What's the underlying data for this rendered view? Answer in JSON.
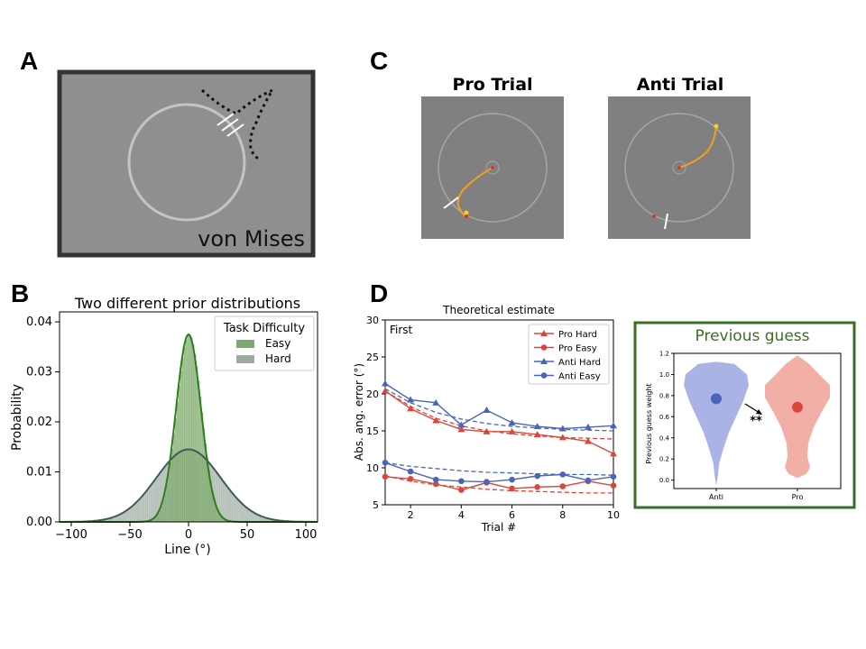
{
  "panel_labels": {
    "a": "A",
    "b": "B",
    "c": "C",
    "d": "D"
  },
  "panel_a": {
    "label": "von Mises"
  },
  "panel_c": {
    "pro_title": "Pro Trial",
    "anti_title": "Anti Trial"
  },
  "colors": {
    "easy": "#7faa6e",
    "easy_line": "#2e7d1f",
    "hard": "#9eaba2",
    "hard_line": "#3d5a5d",
    "pro": "#d9473a",
    "anti": "#4a65b8",
    "violin_anti": "#9aa6e0",
    "violin_pro": "#f0a196",
    "box_border": "#3b6e25"
  },
  "chart_data": [
    {
      "type": "bar",
      "title": "Two different prior distributions",
      "xlabel": "Line (°)",
      "ylabel": "Probability",
      "xlim": [
        -110,
        110
      ],
      "ylim": [
        0,
        0.042
      ],
      "xticks": [
        -100,
        -50,
        0,
        50,
        100
      ],
      "yticks": [
        0.0,
        0.01,
        0.02,
        0.03,
        0.04
      ],
      "xtick_labels": [
        "−100",
        "−50",
        "0",
        "50",
        "100"
      ],
      "ytick_labels": [
        "0.00",
        "0.01",
        "0.02",
        "0.03",
        "0.04"
      ],
      "legend": {
        "title": "Task Difficulty",
        "placement": "top-right"
      },
      "series": [
        {
          "name": "Easy",
          "shape": "gaussian",
          "mean": 0,
          "sd": 10.6,
          "peak": 0.0375
        },
        {
          "name": "Hard",
          "shape": "gaussian",
          "mean": 0,
          "sd": 27.5,
          "peak": 0.0145
        }
      ],
      "grid": false
    },
    {
      "type": "line",
      "title": "Theoretical estimate",
      "annotation": "First",
      "xlabel": "Trial #",
      "ylabel": "Abs. ang. error (°)",
      "xlim": [
        1,
        10
      ],
      "ylim": [
        5,
        30
      ],
      "xticks": [
        2,
        4,
        6,
        8,
        10
      ],
      "yticks": [
        5,
        10,
        15,
        20,
        25,
        30
      ],
      "legend": {
        "placement": "top-right"
      },
      "x": [
        1,
        2,
        3,
        4,
        5,
        6,
        7,
        8,
        9,
        10
      ],
      "series": [
        {
          "name": "Pro Hard",
          "marker": "triangle",
          "color_key": "pro",
          "values": [
            20.4,
            18.0,
            16.4,
            15.2,
            14.9,
            14.9,
            14.5,
            14.1,
            13.6,
            11.9
          ],
          "fit": [
            20.4,
            18.3,
            16.7,
            15.7,
            15.0,
            14.6,
            14.3,
            14.1,
            14.0,
            13.9
          ]
        },
        {
          "name": "Pro Easy",
          "marker": "circle",
          "color_key": "pro",
          "values": [
            8.8,
            8.5,
            7.8,
            7.0,
            8.0,
            7.2,
            7.4,
            7.5,
            8.2,
            7.6
          ],
          "fit": [
            8.9,
            8.2,
            7.7,
            7.4,
            7.1,
            6.9,
            6.8,
            6.7,
            6.6,
            6.6
          ]
        },
        {
          "name": "Anti Hard",
          "marker": "triangle",
          "color_key": "anti",
          "values": [
            21.4,
            19.2,
            18.8,
            15.8,
            17.8,
            16.1,
            15.6,
            15.3,
            15.5,
            15.7
          ],
          "fit": [
            20.7,
            18.8,
            17.5,
            16.6,
            16.0,
            15.6,
            15.4,
            15.2,
            15.1,
            15.0
          ]
        },
        {
          "name": "Anti Easy",
          "marker": "circle",
          "color_key": "anti",
          "values": [
            10.7,
            9.5,
            8.4,
            8.2,
            8.1,
            8.4,
            8.9,
            9.1,
            8.3,
            8.8
          ],
          "fit": [
            10.7,
            10.2,
            9.9,
            9.6,
            9.4,
            9.3,
            9.2,
            9.1,
            9.1,
            9.0
          ]
        }
      ],
      "grid": false
    },
    {
      "type": "violin",
      "title": "Previous guess",
      "xlabel": "",
      "ylabel": "Previous guess weight",
      "categories": [
        "Anti",
        "Pro"
      ],
      "means": [
        0.77,
        0.69
      ],
      "ylim": [
        -0.08,
        1.2
      ],
      "yticks": [
        0.0,
        0.2,
        0.4,
        0.6,
        0.8,
        1.0,
        1.2
      ],
      "ytick_labels": [
        "0.0",
        "0.2",
        "0.4",
        "0.6",
        "0.8",
        "1.0",
        "1.2"
      ],
      "significance": "**"
    }
  ]
}
